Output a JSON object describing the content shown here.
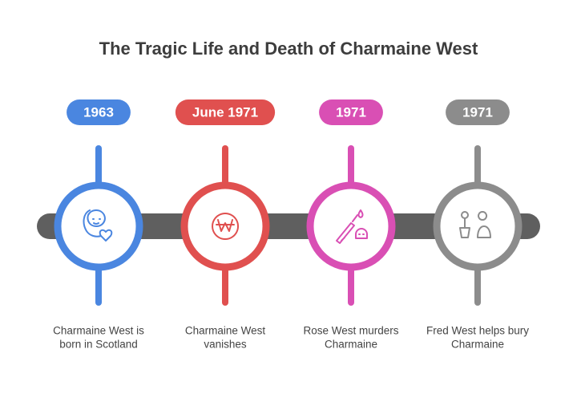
{
  "title": "The Tragic Life and Death of Charmaine West",
  "events": [
    {
      "date": "1963",
      "description": [
        "Charmaine West is",
        "born in Scotland"
      ]
    },
    {
      "date": "June 1971",
      "description": [
        "Charmaine West",
        "vanishes"
      ]
    },
    {
      "date": "1971",
      "description": [
        "Rose West murders",
        "Charmaine"
      ]
    },
    {
      "date": "1971",
      "description": [
        "Fred West helps bury",
        "Charmaine"
      ]
    }
  ]
}
